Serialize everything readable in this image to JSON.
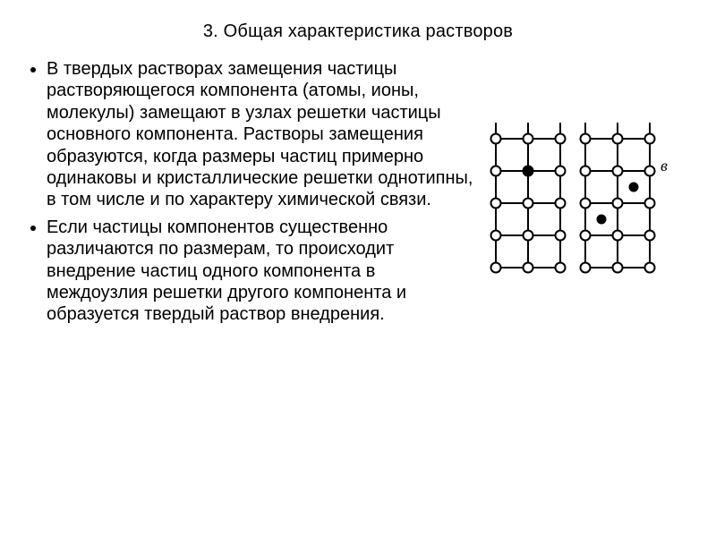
{
  "title": "3. Общая характеристика растворов",
  "bullets": [
    "В твердых растворах замещения частицы растворяющегося компонента    (атомы, ионы, молекулы) замещают в узлах решетки частицы основного компонента. Растворы замещения образуются, когда размеры частиц примерно одинаковы и кристаллические решетки однотипны, в том числе и по характеру химической связи.",
    " Если  частицы  компонентов  существенно различаются по размерам, то происходит внедрение частиц одного компонента в междоузлия решетки другого компонента и образуется твердый раствор внедрения."
  ],
  "figure": {
    "label_right": "в",
    "colors": {
      "stroke": "#000000",
      "fill_empty": "#ffffff",
      "fill_solid": "#000000",
      "background": "#ffffff"
    },
    "lattice": {
      "cols": 3,
      "rows": 5,
      "cell": 36,
      "node_r": 5.5,
      "stroke_width": 2
    },
    "left_grid": {
      "substitution_node": {
        "col": 1,
        "row": 1
      }
    },
    "right_grid": {
      "interstitials": [
        {
          "cx_cell": 1.5,
          "cy_cell": 1.5,
          "r": 4.5
        },
        {
          "cx_cell": 0.5,
          "cy_cell": 2.5,
          "r": 4.5
        }
      ]
    }
  }
}
